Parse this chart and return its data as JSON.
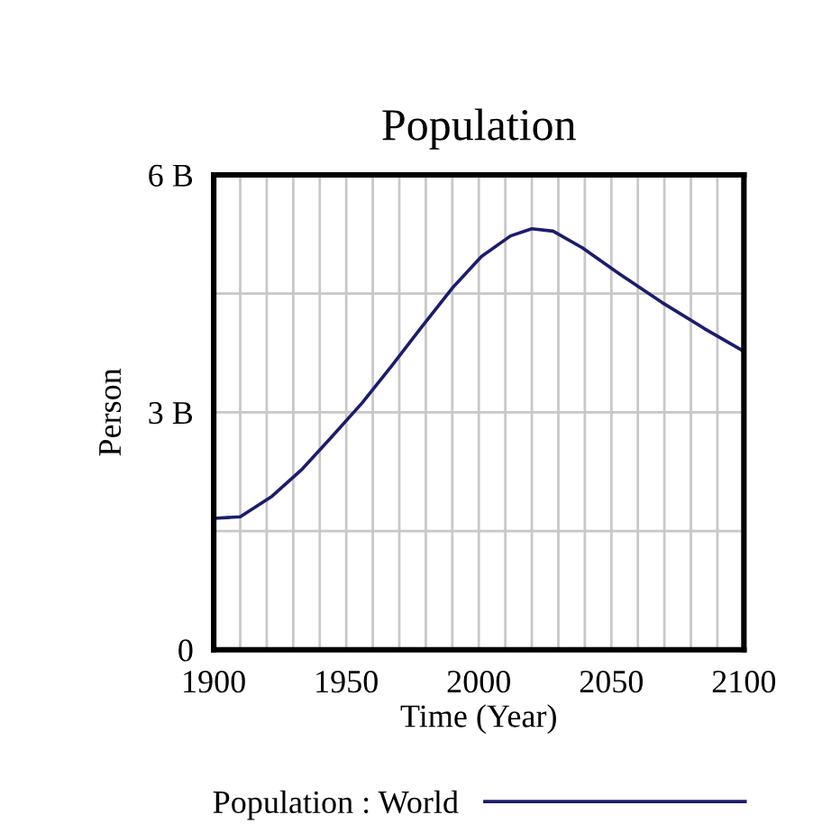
{
  "chart_data": {
    "type": "line",
    "title": "Population",
    "xlabel": "Time (Year)",
    "ylabel": "Person",
    "x": [
      1900,
      1910,
      1922,
      1933,
      1944,
      1956,
      1967,
      1978,
      1990,
      2001,
      2012,
      2020,
      2028,
      2039,
      2053,
      2069,
      2085,
      2100
    ],
    "series": [
      {
        "name": "Population : World",
        "color": "#1c1c6e",
        "values": [
          1660000000.0,
          1680000000.0,
          1940000000.0,
          2270000000.0,
          2670000000.0,
          3120000000.0,
          3580000000.0,
          4060000000.0,
          4570000000.0,
          4970000000.0,
          5230000000.0,
          5320000000.0,
          5290000000.0,
          5080000000.0,
          4750000000.0,
          4390000000.0,
          4060000000.0,
          3770000000.0
        ]
      }
    ],
    "xlim": [
      1900,
      2100
    ],
    "xticks": [
      1900,
      {
        "value": 1910,
        "label": null
      },
      {
        "value": 1920,
        "label": null
      },
      {
        "value": 1930,
        "label": null
      },
      {
        "value": 1940,
        "label": null
      },
      1950,
      {
        "value": 1960,
        "label": null
      },
      {
        "value": 1970,
        "label": null
      },
      {
        "value": 1980,
        "label": null
      },
      {
        "value": 1990,
        "label": null
      },
      2000,
      {
        "value": 2010,
        "label": null
      },
      {
        "value": 2020,
        "label": null
      },
      {
        "value": 2030,
        "label": null
      },
      {
        "value": 2040,
        "label": null
      },
      2050,
      {
        "value": 2060,
        "label": null
      },
      {
        "value": 2070,
        "label": null
      },
      {
        "value": 2080,
        "label": null
      },
      {
        "value": 2090,
        "label": null
      },
      2100
    ],
    "ylim": [
      0,
      6000000000
    ],
    "yticks": [
      {
        "value": 0,
        "label": "0"
      },
      {
        "value": 1500000000,
        "label": null
      },
      {
        "value": 3000000000,
        "label": "3 B"
      },
      {
        "value": 4500000000,
        "label": null
      },
      {
        "value": 6000000000,
        "label": "6 B"
      }
    ],
    "grid": true,
    "legend": "bottom",
    "marker": "none",
    "line_style": "solid"
  }
}
